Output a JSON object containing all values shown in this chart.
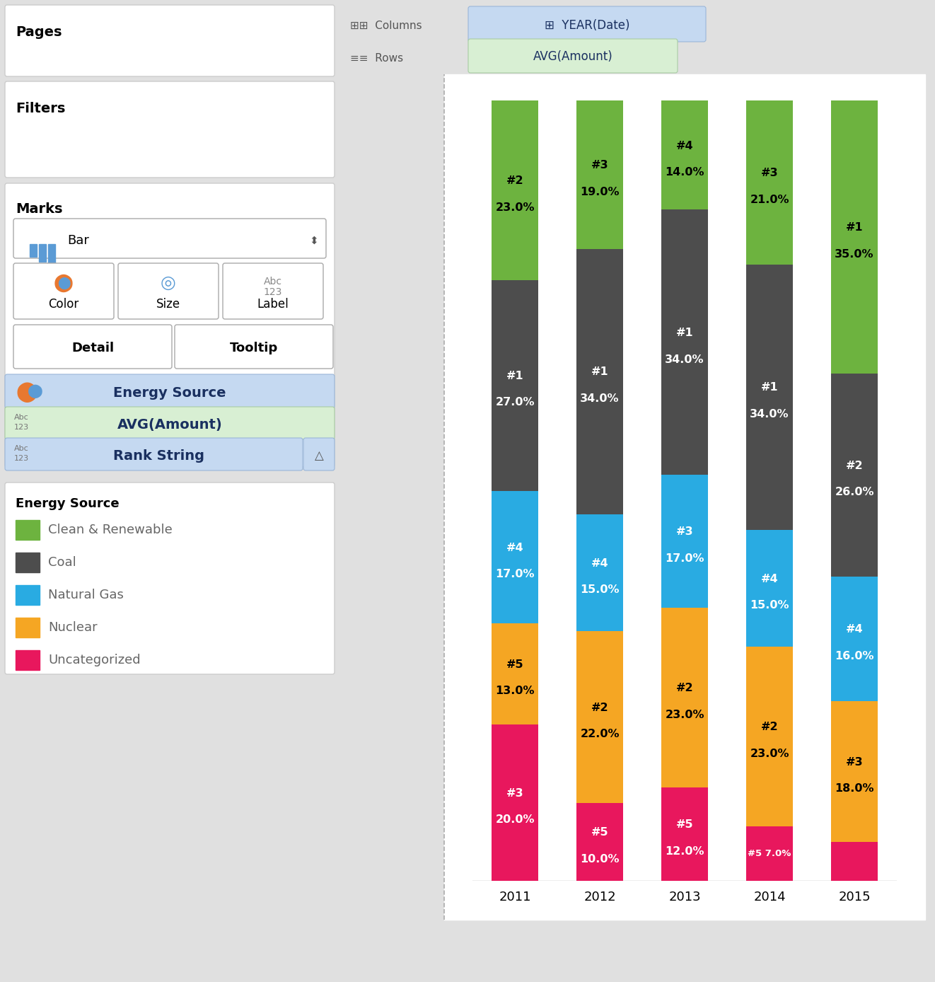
{
  "years": [
    "2011",
    "2012",
    "2013",
    "2014",
    "2015"
  ],
  "stack_order": [
    "Uncategorized",
    "Nuclear",
    "Natural Gas",
    "Coal",
    "Clean & Renewable"
  ],
  "colors": {
    "Clean & Renewable": "#6DB33F",
    "Coal": "#4d4d4d",
    "Natural Gas": "#29ABE2",
    "Nuclear": "#F5A623",
    "Uncategorized": "#E8175D"
  },
  "values": {
    "Uncategorized": [
      20.0,
      10.0,
      12.0,
      7.0,
      5.0
    ],
    "Nuclear": [
      13.0,
      22.0,
      23.0,
      23.0,
      18.0
    ],
    "Natural Gas": [
      17.0,
      15.0,
      17.0,
      15.0,
      16.0
    ],
    "Coal": [
      27.0,
      34.0,
      34.0,
      34.0,
      26.0
    ],
    "Clean & Renewable": [
      23.0,
      19.0,
      14.0,
      21.0,
      35.0
    ]
  },
  "ranks": {
    "Uncategorized": [
      "#3",
      "#5",
      "#5",
      "#5",
      ""
    ],
    "Nuclear": [
      "#5",
      "#2",
      "#2",
      "#2",
      "#3"
    ],
    "Natural Gas": [
      "#4",
      "#4",
      "#3",
      "#4",
      "#4"
    ],
    "Coal": [
      "#1",
      "#1",
      "#1",
      "#1",
      "#2"
    ],
    "Clean & Renewable": [
      "#2",
      "#3",
      "#4",
      "#3",
      "#1"
    ]
  },
  "label_text_colors": {
    "Uncategorized": "white",
    "Nuclear": "black",
    "Natural Gas": "white",
    "Coal": "white",
    "Clean & Renewable": "black"
  },
  "bar_width": 0.55,
  "ylim_max": 102,
  "bg_color": "#e0e0e0",
  "left_bg": "#f0f0f0",
  "white": "#ffffff",
  "panel_border": "#cccccc",
  "blue_pill_bg": "#c5d9f1",
  "blue_pill_border": "#9ab6d8",
  "green_pill_bg": "#d8efd3",
  "green_pill_border": "#a9cca4",
  "legend_text_color": "#666666",
  "header_text_color": "#555555",
  "x_tick_fontsize": 13,
  "label_fontsize": 11.5
}
